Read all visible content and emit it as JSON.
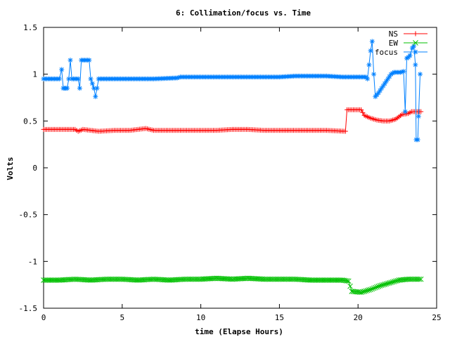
{
  "chart_data": {
    "type": "line",
    "title": "6: Collimation/focus vs. Time",
    "xlabel": "time (Elapse Hours)",
    "ylabel": "Volts",
    "xlim": [
      0,
      25
    ],
    "ylim": [
      -1.5,
      1.5
    ],
    "x_ticks": [
      0,
      5,
      10,
      15,
      20,
      25
    ],
    "y_ticks": [
      -1.5,
      -1,
      -0.5,
      0,
      0.5,
      1,
      1.5
    ],
    "x_tick_labels": [
      "0",
      "5",
      "10",
      "15",
      "20",
      "25"
    ],
    "y_tick_labels": [
      "-1.5",
      "-1",
      "-0.5",
      "0",
      "0.5",
      "1",
      "1.5"
    ],
    "grid": false,
    "legend_position": "top-right",
    "series": [
      {
        "name": "NS",
        "color": "#ff0000",
        "marker": "plus",
        "points": [
          [
            0,
            0.41
          ],
          [
            2,
            0.41
          ],
          [
            2.2,
            0.39
          ],
          [
            2.5,
            0.41
          ],
          [
            3.5,
            0.39
          ],
          [
            4.5,
            0.4
          ],
          [
            5.5,
            0.4
          ],
          [
            6,
            0.41
          ],
          [
            6.5,
            0.42
          ],
          [
            7,
            0.4
          ],
          [
            8,
            0.4
          ],
          [
            9,
            0.4
          ],
          [
            10,
            0.4
          ],
          [
            11,
            0.4
          ],
          [
            12,
            0.41
          ],
          [
            13,
            0.41
          ],
          [
            14,
            0.4
          ],
          [
            15,
            0.4
          ],
          [
            16,
            0.4
          ],
          [
            17,
            0.4
          ],
          [
            18,
            0.4
          ],
          [
            19.2,
            0.39
          ],
          [
            19.3,
            0.62
          ],
          [
            20.2,
            0.62
          ],
          [
            20.4,
            0.56
          ],
          [
            20.8,
            0.53
          ],
          [
            21.2,
            0.51
          ],
          [
            21.6,
            0.5
          ],
          [
            22,
            0.5
          ],
          [
            22.4,
            0.52
          ],
          [
            22.8,
            0.57
          ],
          [
            23.2,
            0.58
          ],
          [
            23.4,
            0.6
          ],
          [
            23.6,
            0.6
          ],
          [
            24,
            0.6
          ]
        ]
      },
      {
        "name": "EW",
        "color": "#00c000",
        "marker": "x",
        "points": [
          [
            0,
            -1.2
          ],
          [
            1,
            -1.2
          ],
          [
            2,
            -1.19
          ],
          [
            3,
            -1.2
          ],
          [
            4,
            -1.19
          ],
          [
            5,
            -1.19
          ],
          [
            6,
            -1.2
          ],
          [
            7,
            -1.19
          ],
          [
            8,
            -1.2
          ],
          [
            9,
            -1.19
          ],
          [
            10,
            -1.19
          ],
          [
            11,
            -1.18
          ],
          [
            12,
            -1.19
          ],
          [
            13,
            -1.18
          ],
          [
            14,
            -1.19
          ],
          [
            15,
            -1.19
          ],
          [
            16,
            -1.19
          ],
          [
            17,
            -1.2
          ],
          [
            18,
            -1.2
          ],
          [
            19,
            -1.2
          ],
          [
            19.4,
            -1.21
          ],
          [
            19.6,
            -1.32
          ],
          [
            20.2,
            -1.33
          ],
          [
            20.8,
            -1.3
          ],
          [
            21.4,
            -1.26
          ],
          [
            22,
            -1.23
          ],
          [
            22.6,
            -1.2
          ],
          [
            23.2,
            -1.19
          ],
          [
            24,
            -1.19
          ]
        ]
      },
      {
        "name": "focus",
        "color": "#0080ff",
        "marker": "star",
        "points": [
          [
            0,
            0.95
          ],
          [
            0.5,
            0.95
          ],
          [
            1,
            0.95
          ],
          [
            1.15,
            1.05
          ],
          [
            1.25,
            0.85
          ],
          [
            1.5,
            0.85
          ],
          [
            1.6,
            0.95
          ],
          [
            1.7,
            1.15
          ],
          [
            1.8,
            0.95
          ],
          [
            2.2,
            0.95
          ],
          [
            2.3,
            0.85
          ],
          [
            2.4,
            1.15
          ],
          [
            2.7,
            1.15
          ],
          [
            2.9,
            1.15
          ],
          [
            3.0,
            0.95
          ],
          [
            3.2,
            0.85
          ],
          [
            3.3,
            0.76
          ],
          [
            3.4,
            0.85
          ],
          [
            3.5,
            0.95
          ],
          [
            5,
            0.95
          ],
          [
            7,
            0.95
          ],
          [
            8.5,
            0.96
          ],
          [
            8.7,
            0.97
          ],
          [
            10,
            0.97
          ],
          [
            12,
            0.97
          ],
          [
            14,
            0.97
          ],
          [
            15,
            0.97
          ],
          [
            16,
            0.98
          ],
          [
            18,
            0.98
          ],
          [
            19,
            0.97
          ],
          [
            20.5,
            0.97
          ],
          [
            20.6,
            0.95
          ],
          [
            20.8,
            1.25
          ],
          [
            20.9,
            1.35
          ],
          [
            21.0,
            1.0
          ],
          [
            21.1,
            0.76
          ],
          [
            21.3,
            0.8
          ],
          [
            21.5,
            0.85
          ],
          [
            21.7,
            0.9
          ],
          [
            21.9,
            0.95
          ],
          [
            22.1,
            1.0
          ],
          [
            22.3,
            1.02
          ],
          [
            22.5,
            1.02
          ],
          [
            22.7,
            1.02
          ],
          [
            22.9,
            1.03
          ],
          [
            23.0,
            0.6
          ],
          [
            23.1,
            1.17
          ],
          [
            23.2,
            1.18
          ],
          [
            23.3,
            1.2
          ],
          [
            23.45,
            1.28
          ],
          [
            23.55,
            1.3
          ],
          [
            23.65,
            1.1
          ],
          [
            23.7,
            0.3
          ],
          [
            23.8,
            0.3
          ],
          [
            23.85,
            0.55
          ],
          [
            23.95,
            1.0
          ]
        ]
      }
    ]
  }
}
